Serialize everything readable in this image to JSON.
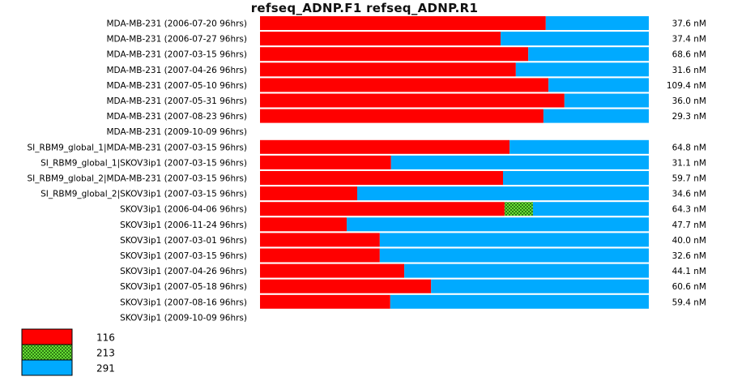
{
  "chart_data": {
    "type": "bar",
    "orientation": "horizontal",
    "stacked": "percent",
    "title": "refseq_ADNP.F1  refseq_ADNP.R1",
    "xlim": [
      0,
      1
    ],
    "colors": {
      "116": "#ff0000",
      "213": "#66dd33",
      "291": "#00aaff"
    },
    "series": [
      {
        "name": "116",
        "color": "#ff0000",
        "pattern": "none"
      },
      {
        "name": "213",
        "color": "#66dd33",
        "pattern": "checker"
      },
      {
        "name": "291",
        "color": "#00aaff",
        "pattern": "none"
      }
    ],
    "rows": [
      {
        "label": "MDA-MB-231 (2006-07-20 96hrs)",
        "value": "37.6 nM",
        "fractions": [
          0.735,
          0,
          0.265
        ]
      },
      {
        "label": "MDA-MB-231 (2006-07-27 96hrs)",
        "value": "37.4 nM",
        "fractions": [
          0.619,
          0,
          0.381
        ]
      },
      {
        "label": "MDA-MB-231 (2007-03-15 96hrs)",
        "value": "68.6 nM",
        "fractions": [
          0.69,
          0,
          0.31
        ]
      },
      {
        "label": "MDA-MB-231 (2007-04-26 96hrs)",
        "value": "31.6 nM",
        "fractions": [
          0.658,
          0,
          0.342
        ]
      },
      {
        "label": "MDA-MB-231 (2007-05-10 96hrs)",
        "value": "109.4 nM",
        "fractions": [
          0.742,
          0,
          0.258
        ]
      },
      {
        "label": "MDA-MB-231 (2007-05-31 96hrs)",
        "value": "36.0 nM",
        "fractions": [
          0.783,
          0,
          0.217
        ]
      },
      {
        "label": "MDA-MB-231 (2007-08-23 96hrs)",
        "value": "29.3 nM",
        "fractions": [
          0.729,
          0,
          0.271
        ]
      },
      {
        "label": "MDA-MB-231 (2009-10-09 96hrs)",
        "value": "",
        "fractions": null
      },
      {
        "label": "SI_RBM9_global_1|MDA-MB-231 (2007-03-15 96hrs)",
        "value": "64.8 nM",
        "fractions": [
          0.642,
          0,
          0.358
        ]
      },
      {
        "label": "SI_RBM9_global_1|SKOV3ip1 (2007-03-15 96hrs)",
        "value": "31.1 nM",
        "fractions": [
          0.337,
          0,
          0.663
        ]
      },
      {
        "label": "SI_RBM9_global_2|MDA-MB-231 (2007-03-15 96hrs)",
        "value": "59.7 nM",
        "fractions": [
          0.625,
          0,
          0.375
        ]
      },
      {
        "label": "SI_RBM9_global_2|SKOV3ip1 (2007-03-15 96hrs)",
        "value": "34.6 nM",
        "fractions": [
          0.25,
          0,
          0.75
        ]
      },
      {
        "label": "SKOV3ip1 (2006-04-06 96hrs)",
        "value": "64.3 nM",
        "fractions": [
          0.629,
          0.073,
          0.298
        ]
      },
      {
        "label": "SKOV3ip1 (2006-11-24 96hrs)",
        "value": "47.7 nM",
        "fractions": [
          0.223,
          0,
          0.777
        ]
      },
      {
        "label": "SKOV3ip1 (2007-03-01 96hrs)",
        "value": "40.0 nM",
        "fractions": [
          0.308,
          0,
          0.692
        ]
      },
      {
        "label": "SKOV3ip1 (2007-03-15 96hrs)",
        "value": "32.6 nM",
        "fractions": [
          0.308,
          0,
          0.692
        ]
      },
      {
        "label": "SKOV3ip1 (2007-04-26 96hrs)",
        "value": "44.1 nM",
        "fractions": [
          0.371,
          0,
          0.629
        ]
      },
      {
        "label": "SKOV3ip1 (2007-05-18 96hrs)",
        "value": "60.6 nM",
        "fractions": [
          0.44,
          0,
          0.56
        ]
      },
      {
        "label": "SKOV3ip1 (2007-08-16 96hrs)",
        "value": "59.4 nM",
        "fractions": [
          0.335,
          0,
          0.665
        ]
      },
      {
        "label": "SKOV3ip1 (2009-10-09 96hrs)",
        "value": "",
        "fractions": null
      }
    ]
  }
}
